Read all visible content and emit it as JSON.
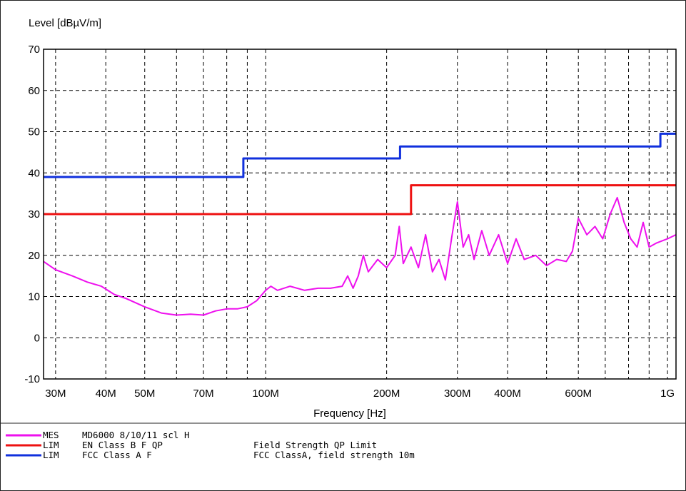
{
  "chart_data": {
    "type": "line",
    "ylabel": "Level [dBµV/m]",
    "xlabel": "Frequency [Hz]",
    "x_scale": "log",
    "xlim": [
      28000000,
      1050000000
    ],
    "ylim": [
      -10,
      70
    ],
    "grid": true,
    "y_ticks": [
      -10,
      0,
      10,
      20,
      30,
      40,
      50,
      60,
      70
    ],
    "y_tick_labels": [
      "-10",
      "0",
      "10",
      "20",
      "30",
      "40",
      "50",
      "60",
      "70"
    ],
    "x_ticks": [
      30000000,
      40000000,
      50000000,
      70000000,
      100000000,
      200000000,
      300000000,
      400000000,
      600000000,
      1000000000
    ],
    "x_tick_labels": [
      "30M",
      "40M",
      "50M",
      "70M",
      "100M",
      "200M",
      "300M",
      "400M",
      "600M",
      "1G"
    ],
    "x_gridlines": [
      30000000,
      40000000,
      50000000,
      60000000,
      70000000,
      80000000,
      90000000,
      100000000,
      200000000,
      300000000,
      400000000,
      500000000,
      600000000,
      700000000,
      800000000,
      900000000,
      1000000000
    ],
    "series": [
      {
        "name": "EN Class B F QP",
        "color": "#ee1111",
        "points": [
          [
            28000000,
            30
          ],
          [
            230000000,
            30
          ],
          [
            230000000,
            37
          ],
          [
            1050000000,
            37
          ]
        ]
      },
      {
        "name": "FCC Class A F",
        "color": "#1030dd",
        "points": [
          [
            28000000,
            39
          ],
          [
            88000000,
            39
          ],
          [
            88000000,
            43.5
          ],
          [
            216000000,
            43.5
          ],
          [
            216000000,
            46.4
          ],
          [
            960000000,
            46.4
          ],
          [
            960000000,
            49.5
          ],
          [
            1050000000,
            49.5
          ]
        ]
      },
      {
        "name": "MD6000 8/10/11 scl H",
        "color": "#ee10ee",
        "points": [
          [
            28000000,
            18.5
          ],
          [
            30000000,
            16.5
          ],
          [
            33000000,
            15
          ],
          [
            36000000,
            13.5
          ],
          [
            39000000,
            12.5
          ],
          [
            42000000,
            10.5
          ],
          [
            45000000,
            9.5
          ],
          [
            50000000,
            7.5
          ],
          [
            55000000,
            6
          ],
          [
            60000000,
            5.5
          ],
          [
            65000000,
            5.7
          ],
          [
            70000000,
            5.5
          ],
          [
            75000000,
            6.5
          ],
          [
            80000000,
            7
          ],
          [
            85000000,
            7
          ],
          [
            90000000,
            7.5
          ],
          [
            95000000,
            9
          ],
          [
            100000000,
            11.5
          ],
          [
            103000000,
            12.5
          ],
          [
            107000000,
            11.5
          ],
          [
            115000000,
            12.5
          ],
          [
            125000000,
            11.5
          ],
          [
            135000000,
            12
          ],
          [
            145000000,
            12
          ],
          [
            155000000,
            12.5
          ],
          [
            160000000,
            15
          ],
          [
            165000000,
            12
          ],
          [
            170000000,
            15
          ],
          [
            175000000,
            20
          ],
          [
            180000000,
            16
          ],
          [
            190000000,
            19
          ],
          [
            200000000,
            17
          ],
          [
            210000000,
            20
          ],
          [
            215000000,
            27
          ],
          [
            220000000,
            18
          ],
          [
            230000000,
            22
          ],
          [
            240000000,
            17
          ],
          [
            250000000,
            25
          ],
          [
            260000000,
            16
          ],
          [
            270000000,
            19
          ],
          [
            280000000,
            14
          ],
          [
            290000000,
            24
          ],
          [
            300000000,
            33
          ],
          [
            310000000,
            22
          ],
          [
            320000000,
            25
          ],
          [
            330000000,
            19
          ],
          [
            345000000,
            26
          ],
          [
            360000000,
            20
          ],
          [
            380000000,
            25
          ],
          [
            400000000,
            18
          ],
          [
            420000000,
            24
          ],
          [
            440000000,
            19
          ],
          [
            470000000,
            20
          ],
          [
            500000000,
            17.5
          ],
          [
            530000000,
            19
          ],
          [
            560000000,
            18.5
          ],
          [
            580000000,
            21
          ],
          [
            600000000,
            29
          ],
          [
            630000000,
            25
          ],
          [
            660000000,
            27
          ],
          [
            690000000,
            24
          ],
          [
            720000000,
            30
          ],
          [
            750000000,
            34
          ],
          [
            780000000,
            28
          ],
          [
            810000000,
            24
          ],
          [
            840000000,
            22
          ],
          [
            870000000,
            28
          ],
          [
            900000000,
            22
          ],
          [
            940000000,
            23
          ],
          [
            1000000000,
            24
          ],
          [
            1050000000,
            25
          ]
        ]
      }
    ]
  },
  "legend": [
    {
      "color": "#ee10ee",
      "type": "MES",
      "name": "MD6000 8/10/11 scl H",
      "description": ""
    },
    {
      "color": "#ee1111",
      "type": "LIM",
      "name": "EN Class B F QP",
      "description": "Field Strength QP Limit"
    },
    {
      "color": "#1030dd",
      "type": "LIM",
      "name": "FCC Class A F",
      "description": "FCC ClassA, field strength 10m"
    }
  ]
}
